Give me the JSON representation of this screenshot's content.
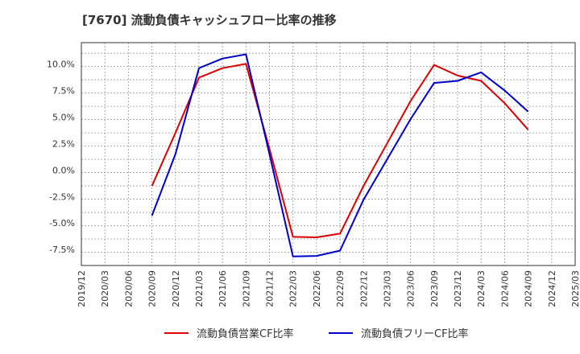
{
  "title": "[7670]  流動負債キャッシュフロー比率の推移",
  "chart_data": {
    "type": "line",
    "title": "[7670]  流動負債キャッシュフロー比率の推移",
    "xlabel": "",
    "ylabel": "",
    "x_ticks": [
      "2019/12",
      "2020/03",
      "2020/06",
      "2020/09",
      "2020/12",
      "2021/03",
      "2021/06",
      "2021/09",
      "2021/12",
      "2022/03",
      "2022/06",
      "2022/09",
      "2022/12",
      "2023/03",
      "2023/06",
      "2023/09",
      "2023/12",
      "2024/03",
      "2024/06",
      "2024/09",
      "2024/12",
      "2025/03"
    ],
    "y_ticks": [
      10.0,
      7.5,
      5.0,
      2.5,
      0.0,
      -2.5,
      -5.0,
      -7.5
    ],
    "y_tick_labels": [
      "10.0%",
      "7.5%",
      "5.0%",
      "2.5%",
      "0.0%",
      "-2.5%",
      "-5.0%",
      "-7.5%"
    ],
    "ylim": [
      -9.0,
      12.0
    ],
    "grid": true,
    "legend_position": "bottom",
    "series": [
      {
        "name": "流動負債営業CF比率",
        "color": "#dd0000",
        "x": [
          "2020/09",
          "2020/12",
          "2021/03",
          "2021/06",
          "2021/09",
          "2021/12",
          "2022/03",
          "2022/06",
          "2022/09",
          "2022/12",
          "2023/03",
          "2023/06",
          "2023/09",
          "2023/12",
          "2024/03",
          "2024/06",
          "2024/09"
        ],
        "values": [
          -1.5,
          3.5,
          8.7,
          9.6,
          10.0,
          2.0,
          -6.3,
          -6.35,
          -6.0,
          -1.5,
          2.5,
          6.5,
          9.9,
          8.9,
          8.4,
          6.3,
          3.8
        ]
      },
      {
        "name": "流動負債フリーCF比率",
        "color": "#0000cc",
        "x": [
          "2020/09",
          "2020/12",
          "2021/03",
          "2021/06",
          "2021/09",
          "2021/12",
          "2022/03",
          "2022/06",
          "2022/09",
          "2022/12",
          "2023/03",
          "2023/06",
          "2023/09",
          "2023/12",
          "2024/03",
          "2024/06",
          "2024/09"
        ],
        "values": [
          -4.3,
          1.5,
          9.6,
          10.5,
          10.9,
          1.5,
          -8.15,
          -8.1,
          -7.6,
          -2.8,
          1.0,
          4.8,
          8.2,
          8.4,
          9.2,
          7.5,
          5.5
        ]
      }
    ]
  }
}
